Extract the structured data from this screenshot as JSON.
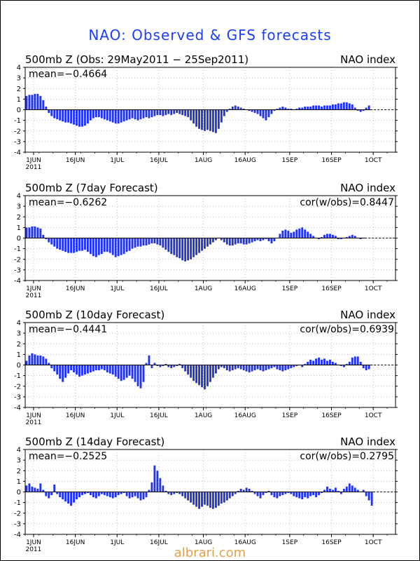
{
  "page": {
    "title": "NAO: Observed & GFS forecasts",
    "watermark": "albrari.com"
  },
  "colors": {
    "bar": "#2233ee",
    "frame": "#000000",
    "title": "#1a3cff",
    "grid": "#aaaaaa"
  },
  "chart_data": [
    {
      "type": "bar",
      "title": "500mb Z (Obs: 29May2011 − 25Sep2011)",
      "right_label": "NAO index",
      "mean_label": "mean=−0.4664",
      "cor_label": "",
      "ylim": [
        -4,
        4
      ],
      "yticks": [
        4,
        3,
        2,
        1,
        0,
        -1,
        -2,
        -3,
        -4
      ],
      "xticks": [
        {
          "day": 3,
          "label": "1JUN"
        },
        {
          "day": 18,
          "label": "16JUN"
        },
        {
          "day": 33,
          "label": "1JUL"
        },
        {
          "day": 48,
          "label": "16JUL"
        },
        {
          "day": 64,
          "label": "1AUG"
        },
        {
          "day": 79,
          "label": "16AUG"
        },
        {
          "day": 95,
          "label": "1SEP"
        },
        {
          "day": 110,
          "label": "16SEP"
        },
        {
          "day": 125,
          "label": "1OCT"
        }
      ],
      "year_label": "2011",
      "x_start": "29May2011",
      "values": [
        1.3,
        1.4,
        1.4,
        1.5,
        1.5,
        1.3,
        0.9,
        0.3,
        -0.3,
        -0.6,
        -0.8,
        -0.9,
        -1.0,
        -1.1,
        -1.2,
        -1.2,
        -1.3,
        -1.4,
        -1.5,
        -1.6,
        -1.6,
        -1.5,
        -1.3,
        -1.0,
        -0.8,
        -0.7,
        -0.7,
        -0.8,
        -0.9,
        -1.0,
        -1.1,
        -1.2,
        -1.3,
        -1.3,
        -1.2,
        -1.1,
        -1.0,
        -0.9,
        -0.8,
        -0.9,
        -1.0,
        -0.9,
        -0.8,
        -0.7,
        -0.8,
        -0.7,
        -0.6,
        -0.5,
        -0.5,
        -0.6,
        -0.5,
        -0.4,
        -0.5,
        -0.4,
        -0.3,
        -0.4,
        -0.5,
        -0.6,
        -0.7,
        -1.0,
        -1.3,
        -1.6,
        -1.8,
        -1.9,
        -2.0,
        -1.9,
        -2.0,
        -2.1,
        -2.2,
        -1.8,
        -1.2,
        -0.6,
        -0.2,
        0.1,
        0.3,
        0.4,
        0.3,
        0.2,
        0.1,
        0.0,
        -0.1,
        -0.2,
        -0.3,
        -0.4,
        -0.6,
        -0.8,
        -1.0,
        -0.7,
        -0.4,
        -0.1,
        0.1,
        0.2,
        0.3,
        0.2,
        0.1,
        0.1,
        0.0,
        0.1,
        0.2,
        0.2,
        0.3,
        0.3,
        0.3,
        0.4,
        0.4,
        0.4,
        0.3,
        0.4,
        0.4,
        0.4,
        0.5,
        0.5,
        0.6,
        0.6,
        0.7,
        0.7,
        0.6,
        0.5,
        0.2,
        -0.1,
        -0.2,
        -0.1,
        0.2,
        0.4
      ]
    },
    {
      "type": "bar",
      "title": "500mb Z (7day Forecast)",
      "right_label": "NAO index",
      "mean_label": "mean=−0.6262",
      "cor_label": "cor(w/obs)=0.8447",
      "ylim": [
        -4,
        4
      ],
      "yticks": [
        4,
        3,
        2,
        1,
        0,
        -1,
        -2,
        -3,
        -4
      ],
      "xticks": [
        {
          "day": 3,
          "label": "1JUN"
        },
        {
          "day": 18,
          "label": "16JUN"
        },
        {
          "day": 33,
          "label": "1JUL"
        },
        {
          "day": 48,
          "label": "16JUL"
        },
        {
          "day": 64,
          "label": "1AUG"
        },
        {
          "day": 79,
          "label": "16AUG"
        },
        {
          "day": 95,
          "label": "1SEP"
        },
        {
          "day": 110,
          "label": "16SEP"
        },
        {
          "day": 125,
          "label": "1OCT"
        }
      ],
      "year_label": "2011",
      "x_start": "29May2011",
      "values": [
        1.0,
        1.0,
        1.1,
        1.1,
        1.0,
        0.9,
        0.3,
        -0.1,
        -0.4,
        -0.6,
        -0.8,
        -1.0,
        -1.1,
        -1.2,
        -1.3,
        -1.4,
        -1.4,
        -1.4,
        -1.3,
        -1.2,
        -1.2,
        -1.1,
        -1.3,
        -1.5,
        -1.7,
        -1.8,
        -1.6,
        -1.5,
        -1.3,
        -1.3,
        -1.4,
        -1.6,
        -1.8,
        -1.7,
        -1.6,
        -1.5,
        -1.3,
        -1.2,
        -1.0,
        -0.9,
        -0.8,
        -0.8,
        -0.7,
        -0.7,
        -0.6,
        -0.5,
        -0.5,
        -0.6,
        -0.7,
        -0.9,
        -1.1,
        -1.3,
        -1.5,
        -1.6,
        -1.8,
        -1.9,
        -2.1,
        -2.2,
        -2.1,
        -2.0,
        -1.8,
        -1.6,
        -1.4,
        -1.2,
        -1.0,
        -0.8,
        -0.6,
        -0.4,
        -0.2,
        0.0,
        -0.2,
        -0.4,
        -0.6,
        -0.7,
        -0.7,
        -0.6,
        -0.5,
        -0.5,
        -0.6,
        -0.6,
        -0.5,
        -0.4,
        -0.3,
        -0.2,
        -0.3,
        -0.2,
        -0.1,
        -0.3,
        -0.5,
        -0.3,
        0.0,
        0.4,
        0.7,
        0.8,
        0.7,
        0.5,
        0.6,
        0.8,
        0.9,
        1.0,
        0.8,
        0.6,
        0.4,
        0.2,
        0.0,
        -0.1,
        0.1,
        0.3,
        0.4,
        0.4,
        0.3,
        0.2,
        -0.1,
        -0.1,
        0.0,
        0.1,
        0.2,
        0.3,
        0.2,
        0.0,
        -0.1,
        0.0
      ]
    },
    {
      "type": "bar",
      "title": "500mb Z (10day Forecast)",
      "right_label": "NAO index",
      "mean_label": "mean=−0.4441",
      "cor_label": "cor(w/obs)=0.6939",
      "ylim": [
        -4,
        4
      ],
      "yticks": [
        4,
        3,
        2,
        1,
        0,
        -1,
        -2,
        -3,
        -4
      ],
      "xticks": [
        {
          "day": 3,
          "label": "1JUN"
        },
        {
          "day": 18,
          "label": "16JUN"
        },
        {
          "day": 33,
          "label": "1JUL"
        },
        {
          "day": 48,
          "label": "16JUL"
        },
        {
          "day": 64,
          "label": "1AUG"
        },
        {
          "day": 79,
          "label": "16AUG"
        },
        {
          "day": 95,
          "label": "1SEP"
        },
        {
          "day": 110,
          "label": "16SEP"
        },
        {
          "day": 125,
          "label": "1OCT"
        }
      ],
      "year_label": "2011",
      "x_start": "29May2011",
      "values": [
        0.4,
        0.9,
        1.1,
        1.0,
        0.9,
        0.9,
        0.8,
        0.6,
        0.2,
        -0.3,
        -0.6,
        -0.9,
        -1.3,
        -1.6,
        -1.2,
        -0.8,
        -0.5,
        -0.7,
        -0.9,
        -1.1,
        -1.0,
        -0.9,
        -0.8,
        -0.7,
        -0.6,
        -0.5,
        -0.5,
        -0.4,
        -0.5,
        -0.7,
        -0.8,
        -0.9,
        -1.1,
        -1.3,
        -1.5,
        -1.4,
        -1.2,
        -1.0,
        -1.3,
        -1.6,
        -2.0,
        -2.2,
        -1.6,
        0.2,
        0.9,
        -0.3,
        0.2,
        -0.1,
        -0.2,
        -0.1,
        0.1,
        -0.2,
        -0.3,
        -0.2,
        -0.1,
        0.1,
        -0.3,
        -0.6,
        -0.9,
        -1.2,
        -1.5,
        -1.7,
        -1.9,
        -2.1,
        -2.3,
        -2.0,
        -1.6,
        -1.2,
        -0.8,
        -0.4,
        -0.2,
        -0.3,
        -0.5,
        -0.6,
        -0.5,
        -0.4,
        -0.3,
        -0.4,
        -0.5,
        -0.6,
        -0.7,
        -0.6,
        -0.5,
        -0.4,
        -0.5,
        -0.6,
        -0.5,
        -0.4,
        -0.3,
        -0.2,
        -0.4,
        -0.5,
        -0.6,
        -0.5,
        -0.4,
        -0.3,
        -0.2,
        -0.1,
        0.0,
        -0.2,
        0.1,
        0.3,
        0.5,
        0.4,
        0.6,
        0.7,
        0.5,
        0.6,
        0.4,
        0.5,
        0.3,
        0.2,
        0.0,
        -0.1,
        -0.2,
        0.1,
        0.3,
        0.7,
        0.8,
        0.8,
        0.3,
        -0.3,
        -0.5,
        -0.4
      ]
    },
    {
      "type": "bar",
      "title": "500mb Z (14day Forecast)",
      "right_label": "NAO index",
      "mean_label": "mean=−0.2525",
      "cor_label": "cor(w/obs)=0.2795",
      "ylim": [
        -4,
        4
      ],
      "yticks": [
        4,
        3,
        2,
        1,
        0,
        -1,
        -2,
        -3,
        -4
      ],
      "xticks": [
        {
          "day": 3,
          "label": "1JUN"
        },
        {
          "day": 18,
          "label": "16JUN"
        },
        {
          "day": 33,
          "label": "1JUL"
        },
        {
          "day": 48,
          "label": "16JUL"
        },
        {
          "day": 64,
          "label": "1AUG"
        },
        {
          "day": 79,
          "label": "16AUG"
        },
        {
          "day": 95,
          "label": "1SEP"
        },
        {
          "day": 110,
          "label": "16SEP"
        },
        {
          "day": 125,
          "label": "1OCT"
        }
      ],
      "year_label": "2011",
      "x_start": "29May2011",
      "values": [
        0.6,
        0.8,
        0.5,
        0.4,
        0.3,
        0.8,
        0.2,
        -0.4,
        -0.6,
        -0.3,
        0.7,
        -0.2,
        -0.5,
        -0.7,
        -0.9,
        -1.1,
        -1.3,
        -1.0,
        -0.7,
        -0.5,
        -0.3,
        -0.2,
        -0.1,
        -0.3,
        -0.5,
        -0.6,
        -0.4,
        -0.2,
        -0.3,
        -0.4,
        -0.5,
        -0.6,
        -0.5,
        -0.3,
        -0.2,
        -0.1,
        -0.4,
        -0.6,
        -0.5,
        -0.4,
        -0.6,
        -0.8,
        -0.7,
        -0.5,
        0.2,
        0.9,
        2.5,
        2.0,
        1.3,
        0.6,
        0.1,
        -0.2,
        -0.3,
        -0.2,
        -0.1,
        -0.2,
        -0.4,
        -0.6,
        -0.8,
        -1.0,
        -1.2,
        -1.4,
        -1.6,
        -1.4,
        -1.2,
        -1.3,
        -1.5,
        -1.6,
        -1.5,
        -1.3,
        -1.1,
        -1.0,
        -0.8,
        -0.6,
        -0.4,
        -0.2,
        0.1,
        0.3,
        0.2,
        0.4,
        0.3,
        0.1,
        -0.2,
        -0.4,
        -0.6,
        -0.3,
        -0.1,
        0.1,
        -0.3,
        -0.5,
        -0.6,
        -0.4,
        -0.3,
        -0.2,
        -0.1,
        -0.2,
        -0.4,
        -0.5,
        -0.6,
        -0.7,
        -0.5,
        -0.6,
        -0.4,
        -0.3,
        -0.5,
        -0.3,
        -0.1,
        0.2,
        0.5,
        0.3,
        0.2,
        0.4,
        0.1,
        -0.2,
        0.3,
        0.5,
        0.8,
        0.6,
        0.4,
        0.2,
        0.0,
        0.2,
        -0.4,
        -0.8,
        -1.3
      ]
    }
  ]
}
